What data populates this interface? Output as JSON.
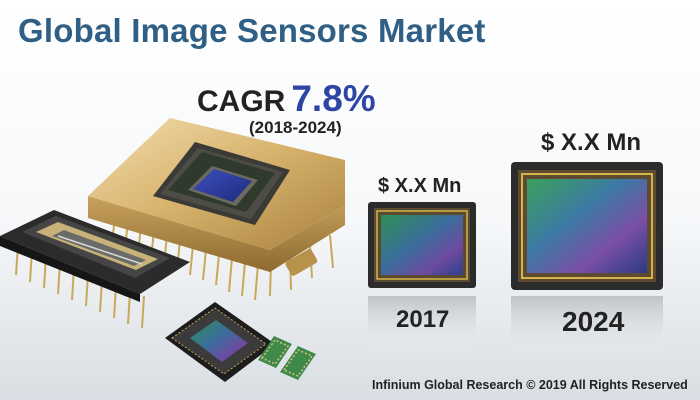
{
  "title": "Global Image Sensors Market",
  "cagr": {
    "label": "CAGR",
    "value": "7.8%",
    "period": "(2018-2024)"
  },
  "sensors": [
    {
      "value": "$ X.X Mn",
      "year": "2017"
    },
    {
      "value": "$ X.X Mn",
      "year": "2024"
    }
  ],
  "footer": "Infinium Global Research © 2019 All Rights Reserved",
  "colors": {
    "title": "#2f5f84",
    "cagr_value": "#2f45a3",
    "text": "#222222",
    "gold": "#d8b874",
    "chip_dark": "#2a2a2a"
  },
  "icons": [
    "gold-ceramic-sensor-package",
    "linear-ccd-sensor-chip",
    "small-cmos-sensor-chip",
    "smd-component",
    "sensor-2017",
    "sensor-2024"
  ]
}
